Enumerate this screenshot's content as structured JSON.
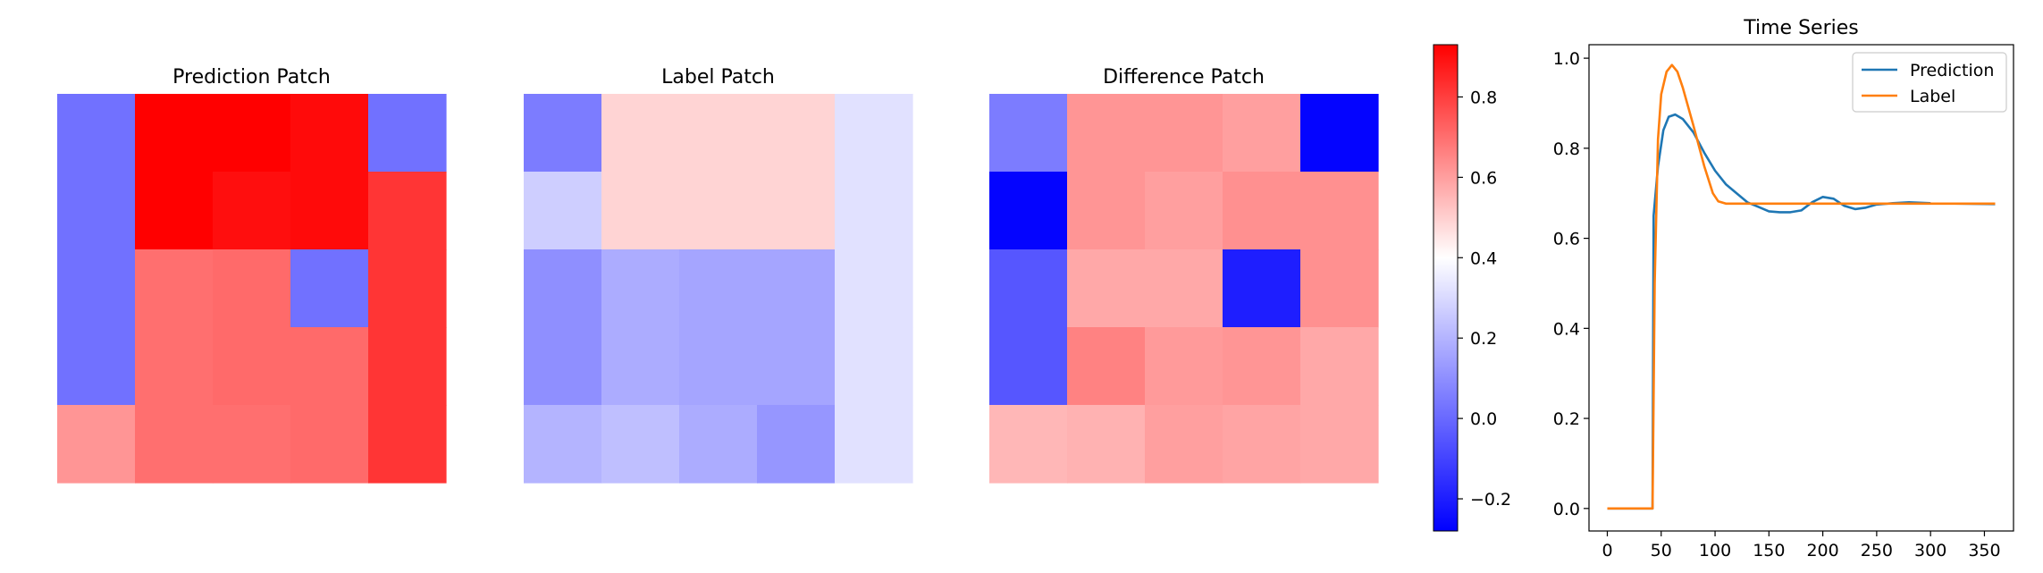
{
  "chart_data": [
    {
      "type": "heatmap",
      "title": "Prediction Patch",
      "rows": 5,
      "cols": 5,
      "values": [
        [
          0.02,
          0.93,
          0.93,
          0.91,
          0.02
        ],
        [
          0.02,
          0.93,
          0.9,
          0.91,
          0.82
        ],
        [
          0.02,
          0.7,
          0.71,
          0.02,
          0.82
        ],
        [
          0.02,
          0.7,
          0.71,
          0.71,
          0.82
        ],
        [
          0.62,
          0.7,
          0.7,
          0.71,
          0.82
        ]
      ]
    },
    {
      "type": "heatmap",
      "title": "Label Patch",
      "rows": 5,
      "cols": 5,
      "values": [
        [
          0.05,
          0.49,
          0.49,
          0.49,
          0.32
        ],
        [
          0.27,
          0.49,
          0.49,
          0.49,
          0.32
        ],
        [
          0.1,
          0.18,
          0.16,
          0.16,
          0.32
        ],
        [
          0.1,
          0.18,
          0.16,
          0.16,
          0.32
        ],
        [
          0.2,
          0.23,
          0.18,
          0.12,
          0.32
        ]
      ]
    },
    {
      "type": "heatmap",
      "title": "Difference Patch",
      "rows": 5,
      "cols": 5,
      "values": [
        [
          0.05,
          0.62,
          0.62,
          0.6,
          -0.27
        ],
        [
          -0.27,
          0.62,
          0.6,
          0.63,
          0.63
        ],
        [
          -0.05,
          0.58,
          0.58,
          -0.2,
          0.63
        ],
        [
          -0.05,
          0.66,
          0.61,
          0.62,
          0.58
        ],
        [
          0.55,
          0.56,
          0.6,
          0.59,
          0.58
        ]
      ]
    },
    {
      "type": "colorbar",
      "range": [
        -0.28,
        0.93
      ],
      "colors": [
        "#0000ff",
        "#ffffff",
        "#ff0000"
      ],
      "ticks": [
        -0.2,
        0.0,
        0.2,
        0.4,
        0.6,
        0.8
      ],
      "tick_labels": [
        "−0.2",
        "0.0",
        "0.2",
        "0.4",
        "0.6",
        "0.8"
      ]
    },
    {
      "type": "line",
      "title": "Time Series",
      "xlim": [
        -17,
        377
      ],
      "ylim": [
        -0.05,
        1.03
      ],
      "xticks": [
        0,
        50,
        100,
        150,
        200,
        250,
        300,
        350
      ],
      "xtick_labels": [
        "0",
        "50",
        "100",
        "150",
        "200",
        "250",
        "300",
        "350"
      ],
      "yticks": [
        0.0,
        0.2,
        0.4,
        0.6,
        0.8,
        1.0
      ],
      "ytick_labels": [
        "0.0",
        "0.2",
        "0.4",
        "0.6",
        "0.8",
        "1.0"
      ],
      "legend": "top-right",
      "series": [
        {
          "name": "Prediction",
          "color": "#1f77b4",
          "points": [
            [
              0,
              0
            ],
            [
              42,
              0
            ],
            [
              43,
              0.65
            ],
            [
              47,
              0.76
            ],
            [
              52,
              0.84
            ],
            [
              57,
              0.87
            ],
            [
              63,
              0.875
            ],
            [
              70,
              0.865
            ],
            [
              80,
              0.835
            ],
            [
              90,
              0.79
            ],
            [
              100,
              0.75
            ],
            [
              110,
              0.72
            ],
            [
              120,
              0.7
            ],
            [
              130,
              0.68
            ],
            [
              140,
              0.67
            ],
            [
              150,
              0.66
            ],
            [
              160,
              0.658
            ],
            [
              170,
              0.658
            ],
            [
              180,
              0.662
            ],
            [
              190,
              0.68
            ],
            [
              200,
              0.692
            ],
            [
              210,
              0.688
            ],
            [
              220,
              0.672
            ],
            [
              230,
              0.665
            ],
            [
              240,
              0.668
            ],
            [
              250,
              0.675
            ],
            [
              265,
              0.678
            ],
            [
              280,
              0.68
            ],
            [
              300,
              0.678
            ],
            [
              330,
              0.677
            ],
            [
              360,
              0.676
            ]
          ]
        },
        {
          "name": "Label",
          "color": "#ff7f0e",
          "points": [
            [
              0,
              0
            ],
            [
              42,
              0
            ],
            [
              44,
              0.5
            ],
            [
              47,
              0.82
            ],
            [
              50,
              0.92
            ],
            [
              55,
              0.97
            ],
            [
              60,
              0.985
            ],
            [
              65,
              0.97
            ],
            [
              70,
              0.935
            ],
            [
              80,
              0.85
            ],
            [
              90,
              0.76
            ],
            [
              98,
              0.7
            ],
            [
              103,
              0.682
            ],
            [
              110,
              0.677
            ],
            [
              130,
              0.677
            ],
            [
              200,
              0.677
            ],
            [
              360,
              0.677
            ]
          ]
        }
      ]
    }
  ]
}
